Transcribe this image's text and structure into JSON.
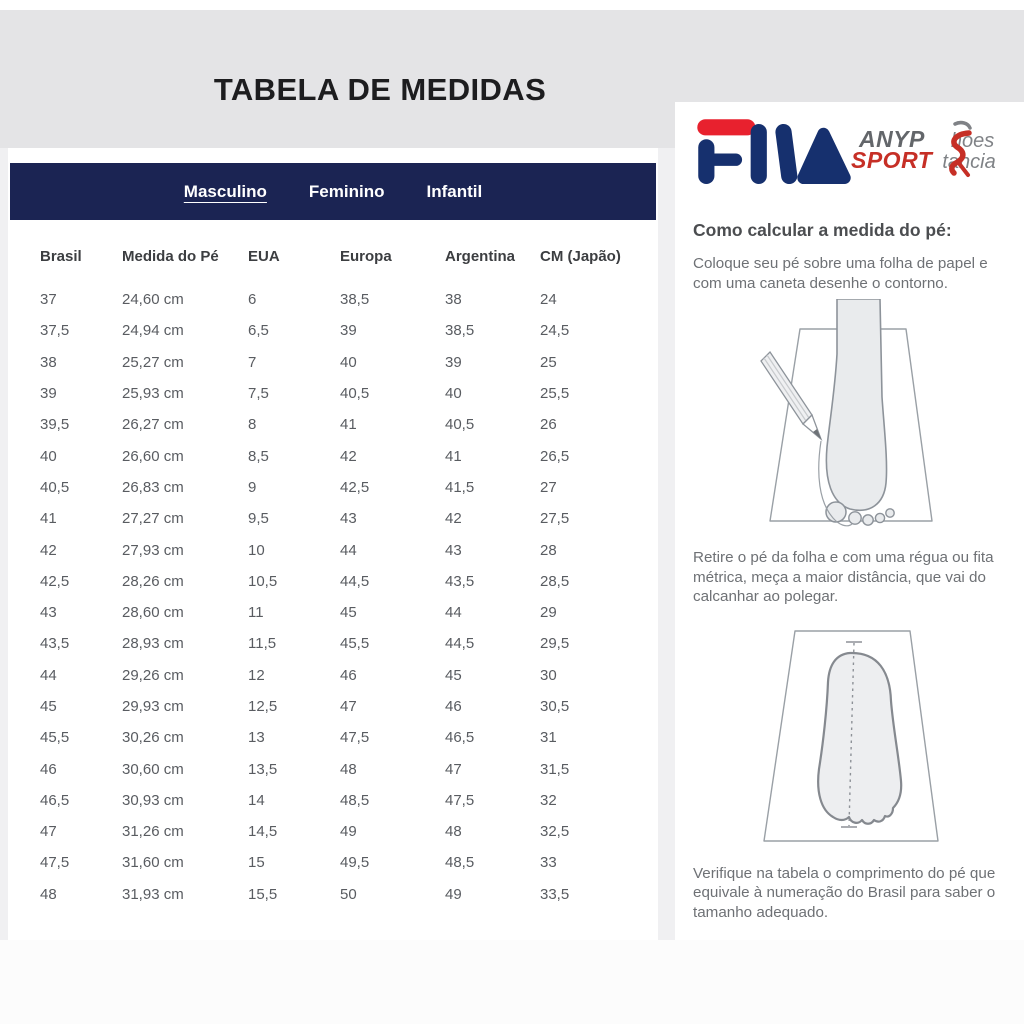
{
  "page": {
    "title": "TABELA DE MEDIDAS"
  },
  "size_chart": {
    "tabs": [
      {
        "label": "Masculino",
        "active": true
      },
      {
        "label": "Feminino",
        "active": false
      },
      {
        "label": "Infantil",
        "active": false
      }
    ],
    "columns": [
      "Brasil",
      "Medida do Pé",
      "EUA",
      "Europa",
      "Argentina",
      "CM (Japão)"
    ],
    "rows": [
      [
        "37",
        "24,60 cm",
        "6",
        "38,5",
        "38",
        "24"
      ],
      [
        "37,5",
        "24,94 cm",
        "6,5",
        "39",
        "38,5",
        "24,5"
      ],
      [
        "38",
        "25,27 cm",
        "7",
        "40",
        "39",
        "25"
      ],
      [
        "39",
        "25,93 cm",
        "7,5",
        "40,5",
        "40",
        "25,5"
      ],
      [
        "39,5",
        "26,27 cm",
        "8",
        "41",
        "40,5",
        "26"
      ],
      [
        "40",
        "26,60 cm",
        "8,5",
        "42",
        "41",
        "26,5"
      ],
      [
        "40,5",
        "26,83 cm",
        "9",
        "42,5",
        "41,5",
        "27"
      ],
      [
        "41",
        "27,27 cm",
        "9,5",
        "43",
        "42",
        "27,5"
      ],
      [
        "42",
        "27,93 cm",
        "10",
        "44",
        "43",
        "28"
      ],
      [
        "42,5",
        "28,26 cm",
        "10,5",
        "44,5",
        "43,5",
        "28,5"
      ],
      [
        "43",
        "28,60 cm",
        "11",
        "45",
        "44",
        "29"
      ],
      [
        "43,5",
        "28,93 cm",
        "11,5",
        "45,5",
        "44,5",
        "29,5"
      ],
      [
        "44",
        "29,26 cm",
        "12",
        "46",
        "45",
        "30"
      ],
      [
        "45",
        "29,93 cm",
        "12,5",
        "47",
        "46",
        "30,5"
      ],
      [
        "45,5",
        "30,26 cm",
        "13",
        "47,5",
        "46,5",
        "31"
      ],
      [
        "46",
        "30,60 cm",
        "13,5",
        "48",
        "47",
        "31,5"
      ],
      [
        "46,5",
        "30,93 cm",
        "14",
        "48,5",
        "47,5",
        "32"
      ],
      [
        "47",
        "31,26 cm",
        "14,5",
        "49",
        "48",
        "32,5"
      ],
      [
        "47,5",
        "31,60 cm",
        "15",
        "49,5",
        "48,5",
        "33"
      ],
      [
        "48",
        "31,93 cm",
        "15,5",
        "50",
        "49",
        "33,5"
      ]
    ]
  },
  "brand": {
    "fila": {
      "text": "FILA"
    },
    "store": {
      "top_bold": "ANYP",
      "top_light": "hoes",
      "bottom_bold": "SPORT",
      "bottom_light": "tancia"
    }
  },
  "guide": {
    "heading": "Como calcular a medida do pé:",
    "steps": [
      {
        "text": "Coloque seu pé sobre uma folha de papel e com uma caneta desenhe o contorno.",
        "illustration": "foot-tracing-illustration"
      },
      {
        "text": "Retire o pé da folha e com uma régua ou fita métrica, meça a maior distância, que vai do calcanhar ao polegar.",
        "illustration": "foot-outline-measure-illustration"
      },
      {
        "text": "Verifique na tabela o comprimento do pé que equivale à numeração do Brasil para saber o tamanho adequado."
      }
    ]
  },
  "colors": {
    "header_navy": "#1b2453",
    "fila_navy": "#16306e",
    "fila_red": "#e8212e",
    "store_bold_gray": "#63666a",
    "store_red": "#c62f26",
    "store_light_gray": "#7f8286",
    "title_band_gray": "#e4e4e6",
    "page_bg_gray": "#f0f0f2",
    "table_text_gray": "#595c61"
  }
}
